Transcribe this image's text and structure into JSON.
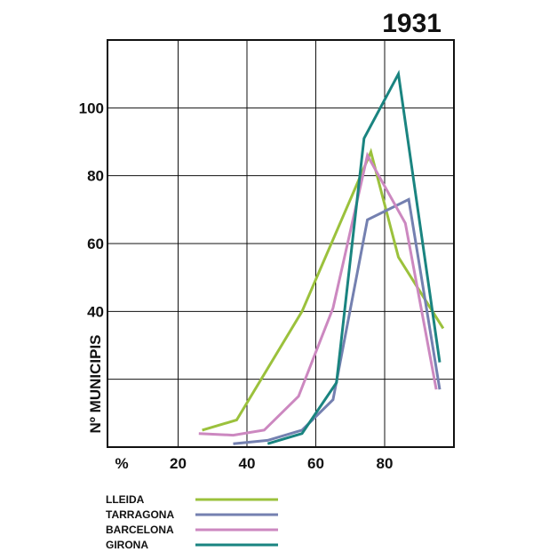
{
  "chart_data": {
    "type": "line",
    "title": "1931",
    "ylabel": "Nº MUNICIPIS",
    "xlabel": "%",
    "xlim": [
      0,
      100
    ],
    "ylim": [
      0,
      120
    ],
    "xticks": [
      {
        "value": 0,
        "label": "%"
      },
      {
        "value": 20,
        "label": "20"
      },
      {
        "value": 40,
        "label": "40"
      },
      {
        "value": 60,
        "label": "60"
      },
      {
        "value": 80,
        "label": "80"
      }
    ],
    "yticks": [
      {
        "value": 40,
        "label": "40"
      },
      {
        "value": 60,
        "label": "60"
      },
      {
        "value": 80,
        "label": "80"
      },
      {
        "value": 100,
        "label": "100"
      }
    ],
    "xgrid": [
      20,
      40,
      60,
      80
    ],
    "ygrid": [
      20,
      40,
      60,
      80,
      100
    ],
    "grid": true,
    "legend_position": "bottom-left",
    "series": [
      {
        "name": "LLEIDA",
        "color": "#9bc13c",
        "points": [
          [
            27,
            5
          ],
          [
            37,
            8
          ],
          [
            56,
            40
          ],
          [
            76,
            87
          ],
          [
            84,
            56
          ],
          [
            97,
            35
          ]
        ]
      },
      {
        "name": "TARRAGONA",
        "color": "#7480b0",
        "points": [
          [
            36,
            1
          ],
          [
            46,
            2
          ],
          [
            56,
            5
          ],
          [
            65,
            14
          ],
          [
            75,
            67
          ],
          [
            87,
            73
          ],
          [
            96,
            17
          ]
        ]
      },
      {
        "name": "BARCELONA",
        "color": "#cc88c0",
        "points": [
          [
            26,
            4
          ],
          [
            36,
            3.5
          ],
          [
            45,
            5
          ],
          [
            55,
            15
          ],
          [
            65,
            41
          ],
          [
            75,
            86
          ],
          [
            86,
            66
          ],
          [
            95,
            17
          ]
        ]
      },
      {
        "name": "GIRONA",
        "color": "#1a8480",
        "points": [
          [
            46,
            1
          ],
          [
            56,
            4
          ],
          [
            66,
            19
          ],
          [
            74,
            91
          ],
          [
            84,
            110
          ],
          [
            96,
            25
          ]
        ]
      }
    ]
  }
}
